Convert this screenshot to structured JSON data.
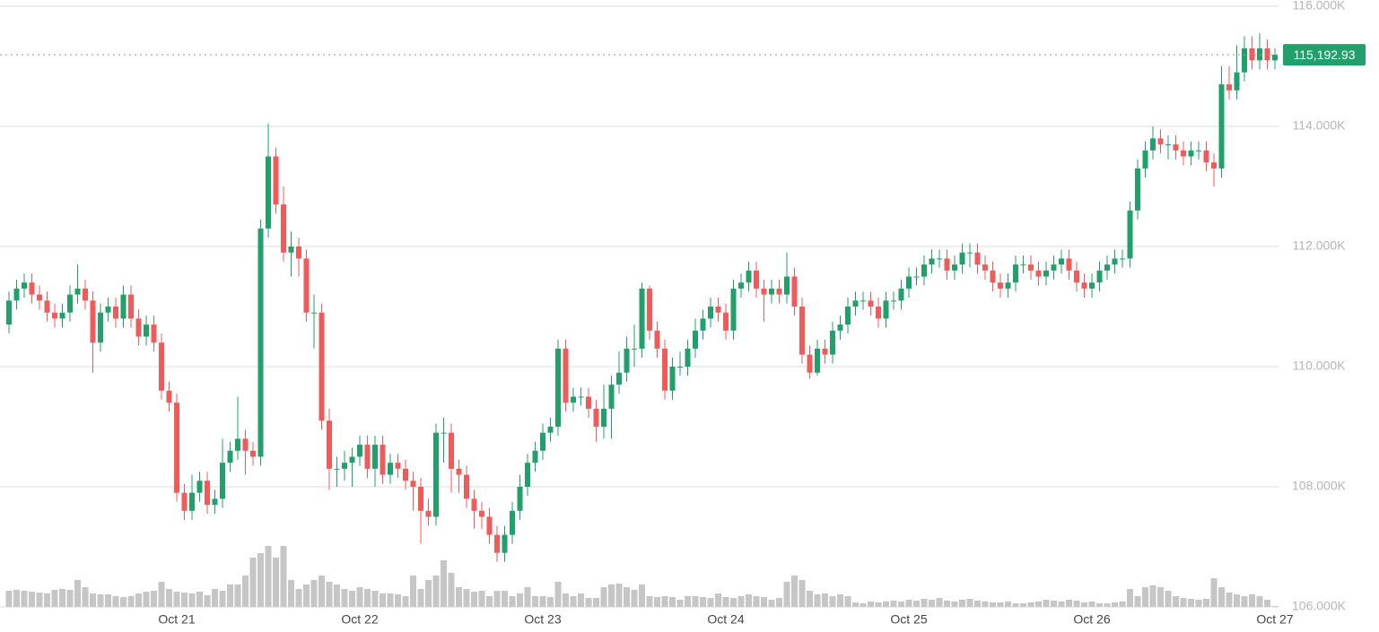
{
  "chart_data": {
    "type": "candlestick",
    "xticks": [
      {
        "value": 22,
        "label": "Oct 21"
      },
      {
        "value": 46,
        "label": "Oct 22"
      },
      {
        "value": 70,
        "label": "Oct 23"
      },
      {
        "value": 94,
        "label": "Oct 24"
      },
      {
        "value": 118,
        "label": "Oct 25"
      },
      {
        "value": 142,
        "label": "Oct 26"
      },
      {
        "value": 166,
        "label": "Oct 27"
      }
    ],
    "ylim": [
      106000,
      116000
    ],
    "yticks": [
      {
        "value": 106000,
        "label": "106.000K"
      },
      {
        "value": 108000,
        "label": "108.000K"
      },
      {
        "value": 110000,
        "label": "110.000K"
      },
      {
        "value": 112000,
        "label": "112.000K"
      },
      {
        "value": 114000,
        "label": "114.000K"
      },
      {
        "value": 116000,
        "label": "116.000K"
      }
    ],
    "grid": true,
    "up_color": "#22a06b",
    "down_color": "#ef5b5b",
    "volume_color": "#c6c6c6",
    "last_price": {
      "value": 115192.93,
      "label": "115,192.93"
    },
    "open": [
      110700,
      111100,
      111300,
      111400,
      111200,
      111100,
      110900,
      110800,
      110900,
      111200,
      111300,
      111100,
      110400,
      110900,
      111000,
      110800,
      111200,
      110800,
      110500,
      110700,
      110400,
      109600,
      109400,
      107900,
      107600,
      107900,
      108100,
      107700,
      107800,
      108400,
      108600,
      108800,
      108600,
      108500,
      112300,
      113500,
      112700,
      111900,
      112000,
      111800,
      110900,
      110900,
      109100,
      108300,
      108300,
      108400,
      108500,
      108700,
      108300,
      108700,
      108200,
      108400,
      108300,
      108100,
      108000,
      107600,
      107500,
      108900,
      108900,
      108300,
      108200,
      107800,
      107600,
      107500,
      107200,
      106900,
      107200,
      107600,
      108000,
      108400,
      108600,
      108900,
      109000,
      110300,
      109400,
      109500,
      109500,
      109300,
      109000,
      109300,
      109700,
      109900,
      110300,
      110300,
      111300,
      110600,
      110300,
      109600,
      110000,
      110000,
      110300,
      110600,
      110800,
      111000,
      110900,
      110600,
      111300,
      111400,
      111600,
      111300,
      111200,
      111300,
      111200,
      111500,
      111000,
      110200,
      109900,
      110300,
      110200,
      110600,
      110700,
      111000,
      111100,
      111100,
      111000,
      110800,
      111100,
      111100,
      111300,
      111500,
      111500,
      111700,
      111800,
      111800,
      111600,
      111700,
      111900,
      111900,
      111700,
      111600,
      111400,
      111300,
      111400,
      111700,
      111700,
      111600,
      111500,
      111600,
      111700,
      111800,
      111600,
      111400,
      111300,
      111400,
      111600,
      111700,
      111800,
      111800,
      112600,
      113300,
      113600,
      113800,
      113700,
      113700,
      113600,
      113500,
      113600,
      113600,
      113400,
      113300,
      114700,
      114600,
      114900,
      115300,
      115100,
      115300,
      115100
    ],
    "high": [
      111250,
      111450,
      111550,
      111550,
      111350,
      111250,
      111050,
      111050,
      111350,
      111700,
      111450,
      111250,
      111050,
      111150,
      111150,
      111350,
      111350,
      110950,
      110850,
      110850,
      110550,
      109750,
      109550,
      108050,
      108200,
      108250,
      108250,
      107950,
      108800,
      108750,
      109500,
      108950,
      108750,
      112450,
      114050,
      113650,
      113000,
      112250,
      112150,
      111950,
      111200,
      111050,
      109300,
      108500,
      108600,
      108650,
      108850,
      108850,
      108850,
      108850,
      108550,
      108550,
      108450,
      108250,
      108150,
      107800,
      109050,
      109150,
      109050,
      108450,
      108350,
      107950,
      107750,
      107650,
      107350,
      107350,
      107750,
      108200,
      108550,
      108750,
      109050,
      109150,
      110450,
      110450,
      109650,
      109650,
      109650,
      109450,
      109700,
      109850,
      110250,
      110500,
      110700,
      111400,
      111350,
      110750,
      110450,
      110150,
      110250,
      110450,
      110800,
      110950,
      111150,
      111150,
      111050,
      111450,
      111550,
      111750,
      111750,
      111450,
      111450,
      111450,
      111900,
      111650,
      111150,
      110350,
      110450,
      110450,
      110750,
      110850,
      111150,
      111250,
      111250,
      111250,
      111150,
      111250,
      111250,
      111450,
      111650,
      111650,
      111850,
      111950,
      111950,
      111950,
      111850,
      112050,
      112050,
      112050,
      111850,
      111750,
      111550,
      111550,
      111850,
      111850,
      111850,
      111750,
      111750,
      111850,
      111950,
      111950,
      111750,
      111550,
      111550,
      111750,
      111850,
      111950,
      111950,
      112750,
      113450,
      113750,
      114000,
      113950,
      113850,
      113850,
      113750,
      113750,
      113750,
      113750,
      113550,
      115000,
      115000,
      115350,
      115500,
      115500,
      115550,
      115450,
      115300
    ],
    "low": [
      110550,
      110950,
      111150,
      111050,
      110950,
      110750,
      110650,
      110650,
      110750,
      111050,
      110950,
      109900,
      110250,
      110750,
      110650,
      110650,
      110650,
      110350,
      110350,
      110250,
      109450,
      109250,
      107750,
      107450,
      107450,
      107750,
      107550,
      107550,
      107650,
      108250,
      108450,
      108200,
      108350,
      108350,
      112150,
      112550,
      111750,
      111500,
      111500,
      110750,
      110300,
      108950,
      107950,
      108000,
      108100,
      108000,
      108350,
      108150,
      108000,
      108050,
      108050,
      108150,
      107950,
      107600,
      107050,
      107350,
      107350,
      108400,
      107900,
      107900,
      107650,
      107300,
      107300,
      107050,
      106750,
      106750,
      107050,
      107450,
      107850,
      108250,
      108450,
      108750,
      108850,
      109250,
      109250,
      109350,
      109150,
      108750,
      108800,
      108800,
      109550,
      109750,
      110000,
      110150,
      110450,
      110150,
      109450,
      109450,
      109850,
      109850,
      110150,
      110450,
      110650,
      110750,
      110450,
      110450,
      111150,
      111250,
      111150,
      110750,
      111050,
      111050,
      111050,
      110850,
      110050,
      109800,
      109850,
      110050,
      110050,
      110450,
      110550,
      110850,
      110950,
      110850,
      110650,
      110650,
      110950,
      110950,
      111150,
      111350,
      111350,
      111550,
      111650,
      111450,
      111450,
      111550,
      111650,
      111550,
      111450,
      111250,
      111150,
      111150,
      111250,
      111550,
      111450,
      111350,
      111350,
      111450,
      111550,
      111450,
      111250,
      111150,
      111150,
      111250,
      111450,
      111550,
      111650,
      111650,
      112450,
      113150,
      113450,
      113550,
      113450,
      113450,
      113350,
      113350,
      113450,
      113250,
      113000,
      113150,
      114450,
      114450,
      114750,
      114950,
      114950,
      114950,
      114950
    ],
    "close": [
      111100,
      111300,
      111400,
      111200,
      111100,
      110900,
      110800,
      110900,
      111200,
      111300,
      111100,
      110400,
      110900,
      111000,
      110800,
      111200,
      110800,
      110500,
      110700,
      110400,
      109600,
      109400,
      107900,
      107600,
      107900,
      108100,
      107700,
      107800,
      108400,
      108600,
      108800,
      108600,
      108500,
      112300,
      113500,
      112700,
      111900,
      112000,
      111800,
      110900,
      110900,
      109100,
      108300,
      108300,
      108400,
      108500,
      108700,
      108300,
      108700,
      108200,
      108400,
      108300,
      108100,
      108000,
      107600,
      107500,
      108900,
      108900,
      108300,
      108200,
      107800,
      107600,
      107500,
      107200,
      106900,
      107200,
      107600,
      108000,
      108400,
      108600,
      108900,
      109000,
      110300,
      109400,
      109500,
      109500,
      109300,
      109000,
      109300,
      109700,
      109900,
      110300,
      110300,
      111300,
      110600,
      110300,
      109600,
      110000,
      110000,
      110300,
      110600,
      110800,
      111000,
      110900,
      110600,
      111300,
      111400,
      111600,
      111300,
      111200,
      111300,
      111200,
      111500,
      111000,
      110200,
      109900,
      110300,
      110200,
      110600,
      110700,
      111000,
      111100,
      111100,
      111000,
      110800,
      111100,
      111100,
      111300,
      111500,
      111500,
      111700,
      111800,
      111800,
      111600,
      111700,
      111900,
      111900,
      111700,
      111600,
      111400,
      111300,
      111400,
      111700,
      111700,
      111600,
      111500,
      111600,
      111700,
      111800,
      111600,
      111400,
      111300,
      111400,
      111600,
      111700,
      111800,
      111800,
      112600,
      113300,
      113600,
      113800,
      113700,
      113700,
      113600,
      113500,
      113600,
      113600,
      113400,
      113300,
      114700,
      114600,
      114900,
      115300,
      115100,
      115300,
      115100,
      115192.93
    ],
    "volume": [
      18,
      19,
      18,
      17,
      16,
      15,
      19,
      20,
      19,
      30,
      22,
      15,
      14,
      14,
      12,
      11,
      12,
      15,
      17,
      18,
      28,
      20,
      17,
      16,
      15,
      17,
      13,
      20,
      18,
      25,
      25,
      35,
      55,
      60,
      68,
      55,
      68,
      30,
      20,
      25,
      30,
      35,
      28,
      25,
      20,
      18,
      22,
      20,
      18,
      15,
      15,
      14,
      12,
      35,
      20,
      30,
      35,
      52,
      38,
      22,
      20,
      17,
      18,
      12,
      18,
      18,
      12,
      15,
      22,
      12,
      12,
      11,
      28,
      15,
      12,
      15,
      10,
      10,
      22,
      25,
      26,
      22,
      19,
      25,
      12,
      11,
      12,
      11,
      8,
      12,
      12,
      11,
      10,
      15,
      11,
      10,
      12,
      14,
      12,
      11,
      8,
      10,
      28,
      35,
      30,
      18,
      14,
      15,
      12,
      14,
      12,
      5,
      4,
      6,
      5,
      6,
      7,
      6,
      8,
      7,
      9,
      8,
      10,
      7,
      6,
      8,
      9,
      7,
      6,
      5,
      5,
      6,
      4,
      4,
      5,
      6,
      8,
      7,
      6,
      8,
      7,
      5,
      6,
      4,
      4,
      5,
      6,
      20,
      12,
      22,
      24,
      22,
      18,
      12,
      10,
      9,
      8,
      9,
      32,
      22,
      16,
      14,
      12,
      14,
      12,
      8,
      1
    ]
  }
}
